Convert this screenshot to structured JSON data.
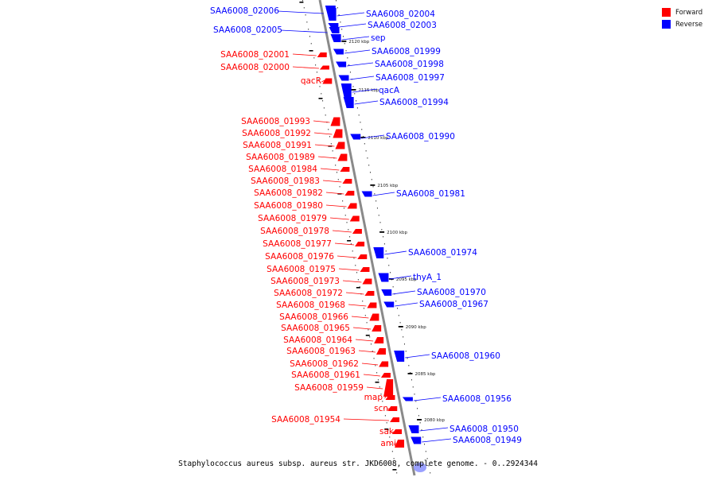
{
  "caption": "Staphylococcus aureus subsp. aureus str. JKD6008, complete genome. - 0..2924344",
  "legend": {
    "forward_label": "Forward",
    "reverse_label": "Reverse",
    "forward_color": "#ff0000",
    "reverse_color": "#0000ff"
  },
  "ticks": [
    "2120 kbp",
    "2115 kbp",
    "2110 kbp",
    "2105 kbp",
    "2100 kbp",
    "2095 kbp",
    "2090 kbp",
    "2085 kbp",
    "2080 kbp"
  ],
  "forward_genes": [
    "SAA6008_02001",
    "SAA6008_02000",
    "qacR",
    "SAA6008_01993",
    "SAA6008_01992",
    "SAA6008_01991",
    "SAA6008_01989",
    "SAA6008_01984",
    "SAA6008_01983",
    "SAA6008_01982",
    "SAA6008_01980",
    "SAA6008_01979",
    "SAA6008_01978",
    "SAA6008_01977",
    "SAA6008_01976",
    "SAA6008_01975",
    "SAA6008_01973",
    "SAA6008_01972",
    "SAA6008_01968",
    "SAA6008_01966",
    "SAA6008_01965",
    "SAA6008_01964",
    "SAA6008_01963",
    "SAA6008_01962",
    "SAA6008_01961",
    "SAA6008_01959",
    "map",
    "scn",
    "SAA6008_01954",
    "sak",
    "ami"
  ],
  "reverse_genes": [
    "SAA6008_02006",
    "SAA6008_02005",
    "SAA6008_02004",
    "SAA6008_02003",
    "sep",
    "SAA6008_01999",
    "SAA6008_01998",
    "SAA6008_01997",
    "qacA",
    "SAA6008_01994",
    "SAA6008_01990",
    "SAA6008_01981",
    "SAA6008_01974",
    "thyA_1",
    "SAA6008_01970",
    "SAA6008_01967",
    "SAA6008_01960",
    "SAA6008_01956",
    "SAA6008_01950",
    "SAA6008_01949"
  ]
}
